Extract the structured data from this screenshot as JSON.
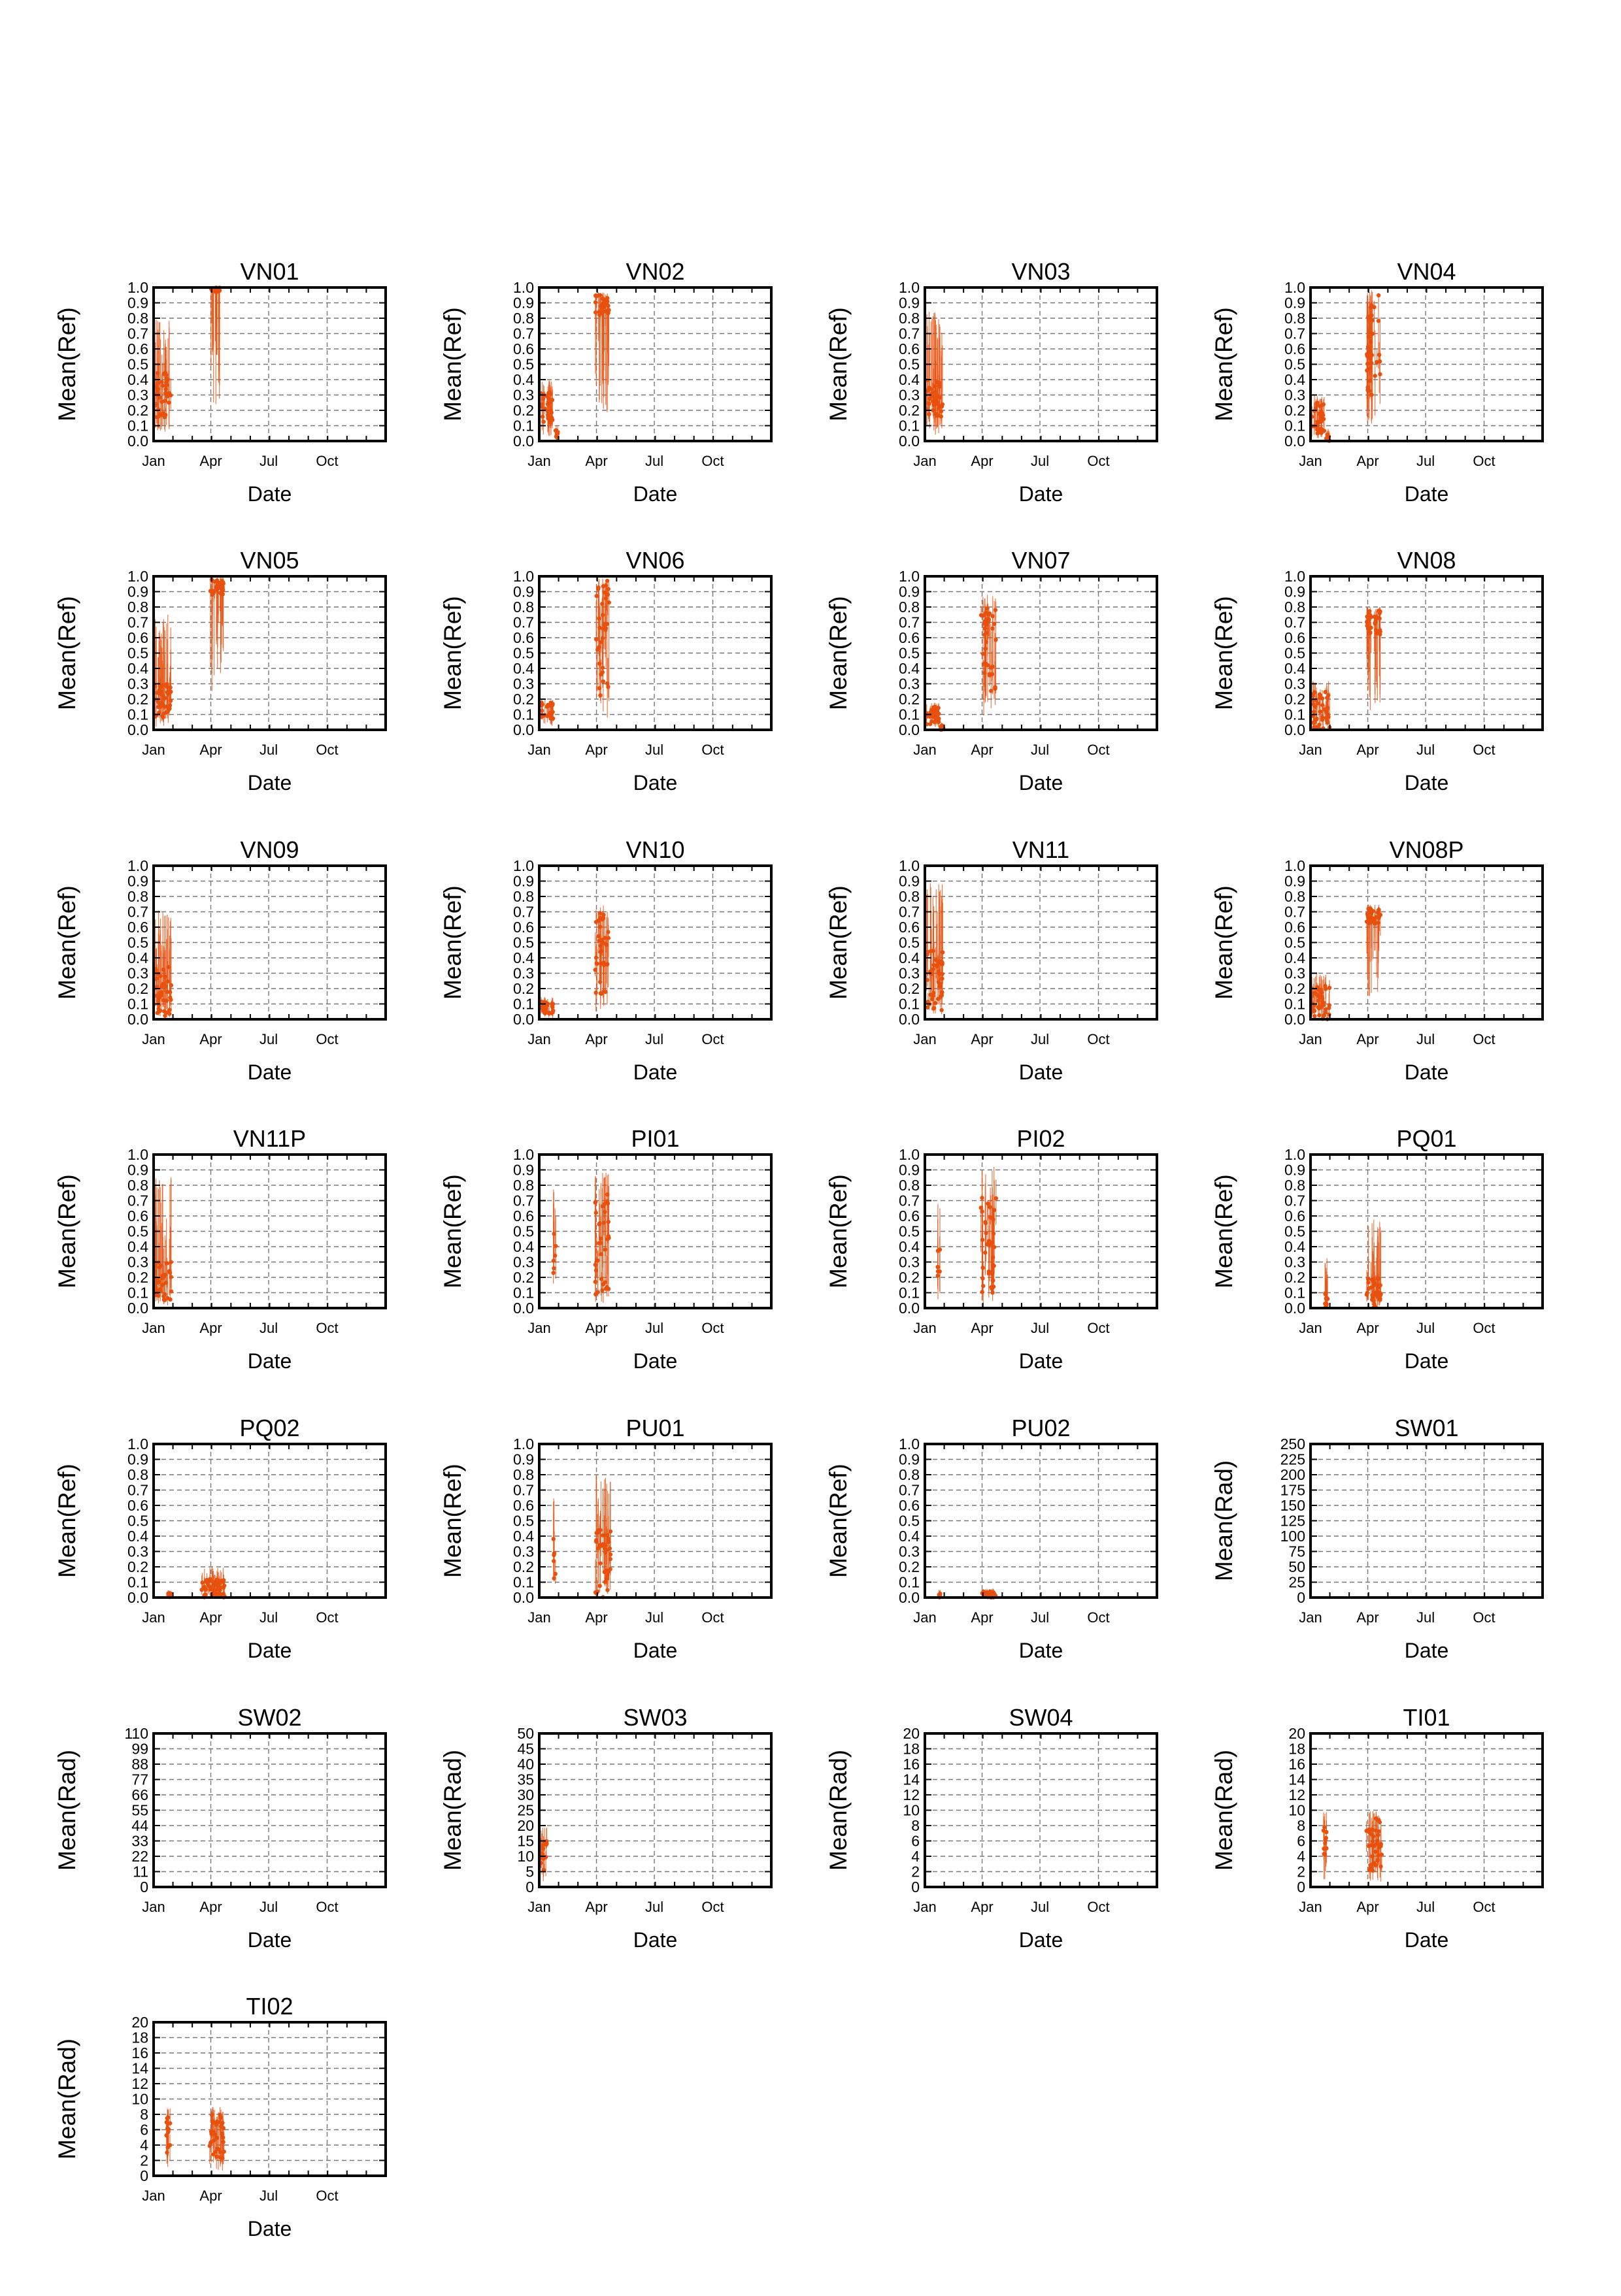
{
  "figure": {
    "shared": {
      "xlabel": "Date",
      "xticks": [
        "Jan",
        "Apr",
        "Jul",
        "Oct"
      ],
      "series_color": "#e8500e"
    }
  },
  "chart_data": [
    {
      "type": "scatter",
      "title": "VN01",
      "ylabel": "Mean(Ref)",
      "xlabel": "Date",
      "xlim": [
        0,
        365
      ],
      "ylim": [
        0,
        1.0
      ],
      "yticks": [
        "0.0",
        "0.1",
        "0.2",
        "0.3",
        "0.4",
        "0.5",
        "0.6",
        "0.7",
        "0.8",
        "0.9",
        "1.0"
      ],
      "xticks": [
        "Jan",
        "Apr",
        "Jul",
        "Oct"
      ],
      "grid": true,
      "clusters": [
        {
          "x_start": 2,
          "x_end": 28,
          "y_min": 0.15,
          "y_max": 0.45,
          "err_max": 0.8
        },
        {
          "x_start": 90,
          "x_end": 105,
          "y_min": 0.97,
          "y_max": 1.0,
          "err_max": 1.0
        }
      ]
    },
    {
      "type": "scatter",
      "title": "VN02",
      "ylabel": "Mean(Ref)",
      "xlabel": "Date",
      "xlim": [
        0,
        365
      ],
      "ylim": [
        0,
        1.0
      ],
      "yticks": [
        "0.0",
        "0.1",
        "0.2",
        "0.3",
        "0.4",
        "0.5",
        "0.6",
        "0.7",
        "0.8",
        "0.9",
        "1.0"
      ],
      "xticks": [
        "Jan",
        "Apr",
        "Jul",
        "Oct"
      ],
      "grid": true,
      "clusters": [
        {
          "x_start": 2,
          "x_end": 22,
          "y_min": 0.12,
          "y_max": 0.32,
          "err_max": 0.4
        },
        {
          "x_start": 25,
          "x_end": 30,
          "y_min": 0.02,
          "y_max": 0.08,
          "err_max": 0.1
        },
        {
          "x_start": 88,
          "x_end": 110,
          "y_min": 0.82,
          "y_max": 0.95,
          "err_max": 0.97
        }
      ]
    },
    {
      "type": "scatter",
      "title": "VN03",
      "ylabel": "Mean(Ref)",
      "xlabel": "Date",
      "xlim": [
        0,
        365
      ],
      "ylim": [
        0,
        1.0
      ],
      "yticks": [
        "0.0",
        "0.1",
        "0.2",
        "0.3",
        "0.4",
        "0.5",
        "0.6",
        "0.7",
        "0.8",
        "0.9",
        "1.0"
      ],
      "xticks": [
        "Jan",
        "Apr",
        "Jul",
        "Oct"
      ],
      "grid": true,
      "clusters": [
        {
          "x_start": 2,
          "x_end": 28,
          "y_min": 0.15,
          "y_max": 0.4,
          "err_max": 0.85
        }
      ]
    },
    {
      "type": "scatter",
      "title": "VN04",
      "ylabel": "Mean(Ref)",
      "xlabel": "Date",
      "xlim": [
        0,
        365
      ],
      "ylim": [
        0,
        1.0
      ],
      "yticks": [
        "0.0",
        "0.1",
        "0.2",
        "0.3",
        "0.4",
        "0.5",
        "0.6",
        "0.7",
        "0.8",
        "0.9",
        "1.0"
      ],
      "xticks": [
        "Jan",
        "Apr",
        "Jul",
        "Oct"
      ],
      "grid": true,
      "clusters": [
        {
          "x_start": 2,
          "x_end": 22,
          "y_min": 0.05,
          "y_max": 0.25,
          "err_max": 0.3
        },
        {
          "x_start": 24,
          "x_end": 30,
          "y_min": 0.0,
          "y_max": 0.05,
          "err_max": 0.08
        },
        {
          "x_start": 88,
          "x_end": 110,
          "y_min": 0.3,
          "y_max": 0.95,
          "err_max": 1.0
        }
      ]
    },
    {
      "type": "scatter",
      "title": "VN05",
      "ylabel": "Mean(Ref)",
      "xlabel": "Date",
      "xlim": [
        0,
        365
      ],
      "ylim": [
        0,
        1.0
      ],
      "yticks": [
        "0.0",
        "0.1",
        "0.2",
        "0.3",
        "0.4",
        "0.5",
        "0.6",
        "0.7",
        "0.8",
        "0.9",
        "1.0"
      ],
      "xticks": [
        "Jan",
        "Apr",
        "Jul",
        "Oct"
      ],
      "grid": true,
      "clusters": [
        {
          "x_start": 2,
          "x_end": 28,
          "y_min": 0.08,
          "y_max": 0.3,
          "err_max": 0.75
        },
        {
          "x_start": 88,
          "x_end": 110,
          "y_min": 0.88,
          "y_max": 0.98,
          "err_max": 1.0
        }
      ]
    },
    {
      "type": "scatter",
      "title": "VN06",
      "ylabel": "Mean(Ref)",
      "xlabel": "Date",
      "xlim": [
        0,
        365
      ],
      "ylim": [
        0,
        1.0
      ],
      "yticks": [
        "0.0",
        "0.1",
        "0.2",
        "0.3",
        "0.4",
        "0.5",
        "0.6",
        "0.7",
        "0.8",
        "0.9",
        "1.0"
      ],
      "xticks": [
        "Jan",
        "Apr",
        "Jul",
        "Oct"
      ],
      "grid": true,
      "clusters": [
        {
          "x_start": 2,
          "x_end": 22,
          "y_min": 0.05,
          "y_max": 0.18,
          "err_max": 0.2
        },
        {
          "x_start": 88,
          "x_end": 110,
          "y_min": 0.2,
          "y_max": 1.0,
          "err_max": 1.0
        }
      ]
    },
    {
      "type": "scatter",
      "title": "VN07",
      "ylabel": "Mean(Ref)",
      "xlabel": "Date",
      "xlim": [
        0,
        365
      ],
      "ylim": [
        0,
        1.0
      ],
      "yticks": [
        "0.0",
        "0.1",
        "0.2",
        "0.3",
        "0.4",
        "0.5",
        "0.6",
        "0.7",
        "0.8",
        "0.9",
        "1.0"
      ],
      "xticks": [
        "Jan",
        "Apr",
        "Jul",
        "Oct"
      ],
      "grid": true,
      "clusters": [
        {
          "x_start": 2,
          "x_end": 22,
          "y_min": 0.03,
          "y_max": 0.15,
          "err_max": 0.18
        },
        {
          "x_start": 24,
          "x_end": 30,
          "y_min": 0.0,
          "y_max": 0.03,
          "err_max": 0.05
        },
        {
          "x_start": 88,
          "x_end": 112,
          "y_min": 0.25,
          "y_max": 0.8,
          "err_max": 0.88
        }
      ]
    },
    {
      "type": "scatter",
      "title": "VN08",
      "ylabel": "Mean(Ref)",
      "xlabel": "Date",
      "xlim": [
        0,
        365
      ],
      "ylim": [
        0,
        1.0
      ],
      "yticks": [
        "0.0",
        "0.1",
        "0.2",
        "0.3",
        "0.4",
        "0.5",
        "0.6",
        "0.7",
        "0.8",
        "0.9",
        "1.0"
      ],
      "xticks": [
        "Jan",
        "Apr",
        "Jul",
        "Oct"
      ],
      "grid": true,
      "clusters": [
        {
          "x_start": 2,
          "x_end": 30,
          "y_min": 0.0,
          "y_max": 0.25,
          "err_max": 0.32
        },
        {
          "x_start": 88,
          "x_end": 110,
          "y_min": 0.62,
          "y_max": 0.78,
          "err_max": 0.8
        }
      ]
    },
    {
      "type": "scatter",
      "title": "VN09",
      "ylabel": "Mean(Ref)",
      "xlabel": "Date",
      "xlim": [
        0,
        365
      ],
      "ylim": [
        0,
        1.0
      ],
      "yticks": [
        "0.0",
        "0.1",
        "0.2",
        "0.3",
        "0.4",
        "0.5",
        "0.6",
        "0.7",
        "0.8",
        "0.9",
        "1.0"
      ],
      "xticks": [
        "Jan",
        "Apr",
        "Jul",
        "Oct"
      ],
      "grid": true,
      "clusters": [
        {
          "x_start": 2,
          "x_end": 28,
          "y_min": 0.02,
          "y_max": 0.35,
          "err_max": 0.72
        }
      ]
    },
    {
      "type": "scatter",
      "title": "VN10",
      "ylabel": "Mean(Ref)",
      "xlabel": "Date",
      "xlim": [
        0,
        365
      ],
      "ylim": [
        0,
        1.0
      ],
      "yticks": [
        "0.0",
        "0.1",
        "0.2",
        "0.3",
        "0.4",
        "0.5",
        "0.6",
        "0.7",
        "0.8",
        "0.9",
        "1.0"
      ],
      "xticks": [
        "Jan",
        "Apr",
        "Jul",
        "Oct"
      ],
      "grid": true,
      "clusters": [
        {
          "x_start": 2,
          "x_end": 22,
          "y_min": 0.03,
          "y_max": 0.12,
          "err_max": 0.15
        },
        {
          "x_start": 88,
          "x_end": 110,
          "y_min": 0.15,
          "y_max": 0.7,
          "err_max": 0.75
        }
      ]
    },
    {
      "type": "scatter",
      "title": "VN11",
      "ylabel": "Mean(Ref)",
      "xlabel": "Date",
      "xlim": [
        0,
        365
      ],
      "ylim": [
        0,
        1.0
      ],
      "yticks": [
        "0.0",
        "0.1",
        "0.2",
        "0.3",
        "0.4",
        "0.5",
        "0.6",
        "0.7",
        "0.8",
        "0.9",
        "1.0"
      ],
      "xticks": [
        "Jan",
        "Apr",
        "Jul",
        "Oct"
      ],
      "grid": true,
      "clusters": [
        {
          "x_start": 2,
          "x_end": 28,
          "y_min": 0.05,
          "y_max": 0.45,
          "err_max": 0.9
        }
      ]
    },
    {
      "type": "scatter",
      "title": "VN08P",
      "ylabel": "Mean(Ref)",
      "xlabel": "Date",
      "xlim": [
        0,
        365
      ],
      "ylim": [
        0,
        1.0
      ],
      "yticks": [
        "0.0",
        "0.1",
        "0.2",
        "0.3",
        "0.4",
        "0.5",
        "0.6",
        "0.7",
        "0.8",
        "0.9",
        "1.0"
      ],
      "xticks": [
        "Jan",
        "Apr",
        "Jul",
        "Oct"
      ],
      "grid": true,
      "clusters": [
        {
          "x_start": 2,
          "x_end": 30,
          "y_min": 0.0,
          "y_max": 0.22,
          "err_max": 0.3
        },
        {
          "x_start": 88,
          "x_end": 110,
          "y_min": 0.62,
          "y_max": 0.72,
          "err_max": 0.75
        }
      ]
    },
    {
      "type": "scatter",
      "title": "VN11P",
      "ylabel": "Mean(Ref)",
      "xlabel": "Date",
      "xlim": [
        0,
        365
      ],
      "ylim": [
        0,
        1.0
      ],
      "yticks": [
        "0.0",
        "0.1",
        "0.2",
        "0.3",
        "0.4",
        "0.5",
        "0.6",
        "0.7",
        "0.8",
        "0.9",
        "1.0"
      ],
      "xticks": [
        "Jan",
        "Apr",
        "Jul",
        "Oct"
      ],
      "grid": true,
      "clusters": [
        {
          "x_start": 2,
          "x_end": 28,
          "y_min": 0.05,
          "y_max": 0.3,
          "err_max": 0.9
        }
      ]
    },
    {
      "type": "scatter",
      "title": "PI01",
      "ylabel": "Mean(Ref)",
      "xlabel": "Date",
      "xlim": [
        0,
        365
      ],
      "ylim": [
        0,
        1.0
      ],
      "yticks": [
        "0.0",
        "0.1",
        "0.2",
        "0.3",
        "0.4",
        "0.5",
        "0.6",
        "0.7",
        "0.8",
        "0.9",
        "1.0"
      ],
      "xticks": [
        "Jan",
        "Apr",
        "Jul",
        "Oct"
      ],
      "grid": true,
      "clusters": [
        {
          "x_start": 22,
          "x_end": 26,
          "y_min": 0.2,
          "y_max": 0.5,
          "err_max": 0.8
        },
        {
          "x_start": 88,
          "x_end": 110,
          "y_min": 0.05,
          "y_max": 0.75,
          "err_max": 0.9
        }
      ]
    },
    {
      "type": "scatter",
      "title": "PI02",
      "ylabel": "Mean(Ref)",
      "xlabel": "Date",
      "xlim": [
        0,
        365
      ],
      "ylim": [
        0,
        1.0
      ],
      "yticks": [
        "0.0",
        "0.1",
        "0.2",
        "0.3",
        "0.4",
        "0.5",
        "0.6",
        "0.7",
        "0.8",
        "0.9",
        "1.0"
      ],
      "xticks": [
        "Jan",
        "Apr",
        "Jul",
        "Oct"
      ],
      "grid": true,
      "clusters": [
        {
          "x_start": 20,
          "x_end": 24,
          "y_min": 0.2,
          "y_max": 0.45,
          "err_max": 0.75
        },
        {
          "x_start": 88,
          "x_end": 112,
          "y_min": 0.1,
          "y_max": 0.8,
          "err_max": 0.92
        }
      ]
    },
    {
      "type": "scatter",
      "title": "PQ01",
      "ylabel": "Mean(Ref)",
      "xlabel": "Date",
      "xlim": [
        0,
        365
      ],
      "ylim": [
        0,
        1.0
      ],
      "yticks": [
        "0.0",
        "0.1",
        "0.2",
        "0.3",
        "0.4",
        "0.5",
        "0.6",
        "0.7",
        "0.8",
        "0.9",
        "1.0"
      ],
      "xticks": [
        "Jan",
        "Apr",
        "Jul",
        "Oct"
      ],
      "grid": true,
      "clusters": [
        {
          "x_start": 22,
          "x_end": 28,
          "y_min": 0.0,
          "y_max": 0.1,
          "err_max": 0.35
        },
        {
          "x_start": 88,
          "x_end": 112,
          "y_min": 0.0,
          "y_max": 0.2,
          "err_max": 0.58
        }
      ]
    },
    {
      "type": "scatter",
      "title": "PQ02",
      "ylabel": "Mean(Ref)",
      "xlabel": "Date",
      "xlim": [
        0,
        365
      ],
      "ylim": [
        0,
        1.0
      ],
      "yticks": [
        "0.0",
        "0.1",
        "0.2",
        "0.3",
        "0.4",
        "0.5",
        "0.6",
        "0.7",
        "0.8",
        "0.9",
        "1.0"
      ],
      "xticks": [
        "Jan",
        "Apr",
        "Jul",
        "Oct"
      ],
      "grid": true,
      "clusters": [
        {
          "x_start": 22,
          "x_end": 28,
          "y_min": 0.0,
          "y_max": 0.03,
          "err_max": 0.05
        },
        {
          "x_start": 75,
          "x_end": 112,
          "y_min": 0.0,
          "y_max": 0.12,
          "err_max": 0.2
        }
      ]
    },
    {
      "type": "scatter",
      "title": "PU01",
      "ylabel": "Mean(Ref)",
      "xlabel": "Date",
      "xlim": [
        0,
        365
      ],
      "ylim": [
        0,
        1.0
      ],
      "yticks": [
        "0.0",
        "0.1",
        "0.2",
        "0.3",
        "0.4",
        "0.5",
        "0.6",
        "0.7",
        "0.8",
        "0.9",
        "1.0"
      ],
      "xticks": [
        "Jan",
        "Apr",
        "Jul",
        "Oct"
      ],
      "grid": true,
      "clusters": [
        {
          "x_start": 22,
          "x_end": 26,
          "y_min": 0.0,
          "y_max": 0.5,
          "err_max": 0.72
        },
        {
          "x_start": 88,
          "x_end": 112,
          "y_min": 0.0,
          "y_max": 0.45,
          "err_max": 0.8
        }
      ]
    },
    {
      "type": "scatter",
      "title": "PU02",
      "ylabel": "Mean(Ref)",
      "xlabel": "Date",
      "xlim": [
        0,
        365
      ],
      "ylim": [
        0,
        1.0
      ],
      "yticks": [
        "0.0",
        "0.1",
        "0.2",
        "0.3",
        "0.4",
        "0.5",
        "0.6",
        "0.7",
        "0.8",
        "0.9",
        "1.0"
      ],
      "xticks": [
        "Jan",
        "Apr",
        "Jul",
        "Oct"
      ],
      "grid": true,
      "clusters": [
        {
          "x_start": 22,
          "x_end": 26,
          "y_min": 0.0,
          "y_max": 0.03,
          "err_max": 0.05
        },
        {
          "x_start": 88,
          "x_end": 112,
          "y_min": 0.0,
          "y_max": 0.04,
          "err_max": 0.06
        }
      ]
    },
    {
      "type": "scatter",
      "title": "SW01",
      "ylabel": "Mean(Rad)",
      "xlabel": "Date",
      "xlim": [
        0,
        365
      ],
      "ylim": [
        0,
        250
      ],
      "yticks": [
        "0",
        "25",
        "50",
        "75",
        "100",
        "125",
        "150",
        "175",
        "200",
        "225",
        "250"
      ],
      "xticks": [
        "Jan",
        "Apr",
        "Jul",
        "Oct"
      ],
      "grid": true,
      "clusters": []
    },
    {
      "type": "scatter",
      "title": "SW02",
      "ylabel": "Mean(Rad)",
      "xlabel": "Date",
      "xlim": [
        0,
        365
      ],
      "ylim": [
        0,
        110
      ],
      "yticks": [
        "0",
        "11",
        "22",
        "33",
        "44",
        "55",
        "66",
        "77",
        "88",
        "99",
        "110"
      ],
      "xticks": [
        "Jan",
        "Apr",
        "Jul",
        "Oct"
      ],
      "grid": true,
      "clusters": []
    },
    {
      "type": "scatter",
      "title": "SW03",
      "ylabel": "Mean(Rad)",
      "xlabel": "Date",
      "xlim": [
        0,
        365
      ],
      "ylim": [
        0,
        50
      ],
      "yticks": [
        "0",
        "5",
        "10",
        "15",
        "20",
        "25",
        "30",
        "35",
        "40",
        "45",
        "50"
      ],
      "xticks": [
        "Jan",
        "Apr",
        "Jul",
        "Oct"
      ],
      "grid": true,
      "clusters": [
        {
          "x_start": 2,
          "x_end": 12,
          "y_min": 5,
          "y_max": 15,
          "err_max": 20
        }
      ]
    },
    {
      "type": "scatter",
      "title": "SW04",
      "ylabel": "Mean(Rad)",
      "xlabel": "Date",
      "xlim": [
        0,
        365
      ],
      "ylim": [
        0,
        20
      ],
      "yticks": [
        "0",
        "2",
        "4",
        "6",
        "8",
        "10",
        "12",
        "14",
        "16",
        "18",
        "20"
      ],
      "xticks": [
        "Jan",
        "Apr",
        "Jul",
        "Oct"
      ],
      "grid": true,
      "clusters": []
    },
    {
      "type": "scatter",
      "title": "TI01",
      "ylabel": "Mean(Rad)",
      "xlabel": "Date",
      "xlim": [
        0,
        365
      ],
      "ylim": [
        0,
        20
      ],
      "yticks": [
        "0",
        "2",
        "4",
        "6",
        "8",
        "10",
        "12",
        "14",
        "16",
        "18",
        "20"
      ],
      "xticks": [
        "Jan",
        "Apr",
        "Jul",
        "Oct"
      ],
      "grid": true,
      "clusters": [
        {
          "x_start": 20,
          "x_end": 26,
          "y_min": 4,
          "y_max": 9,
          "err_max": 10
        },
        {
          "x_start": 88,
          "x_end": 112,
          "y_min": 2,
          "y_max": 9,
          "err_max": 10
        }
      ]
    },
    {
      "type": "scatter",
      "title": "TI02",
      "ylabel": "Mean(Rad)",
      "xlabel": "Date",
      "xlim": [
        0,
        365
      ],
      "ylim": [
        0,
        20
      ],
      "yticks": [
        "0",
        "2",
        "4",
        "6",
        "8",
        "10",
        "12",
        "14",
        "16",
        "18",
        "20"
      ],
      "xticks": [
        "Jan",
        "Apr",
        "Jul",
        "Oct"
      ],
      "grid": true,
      "clusters": [
        {
          "x_start": 18,
          "x_end": 26,
          "y_min": 3,
          "y_max": 8,
          "err_max": 9
        },
        {
          "x_start": 88,
          "x_end": 112,
          "y_min": 2,
          "y_max": 8,
          "err_max": 9
        }
      ]
    }
  ]
}
